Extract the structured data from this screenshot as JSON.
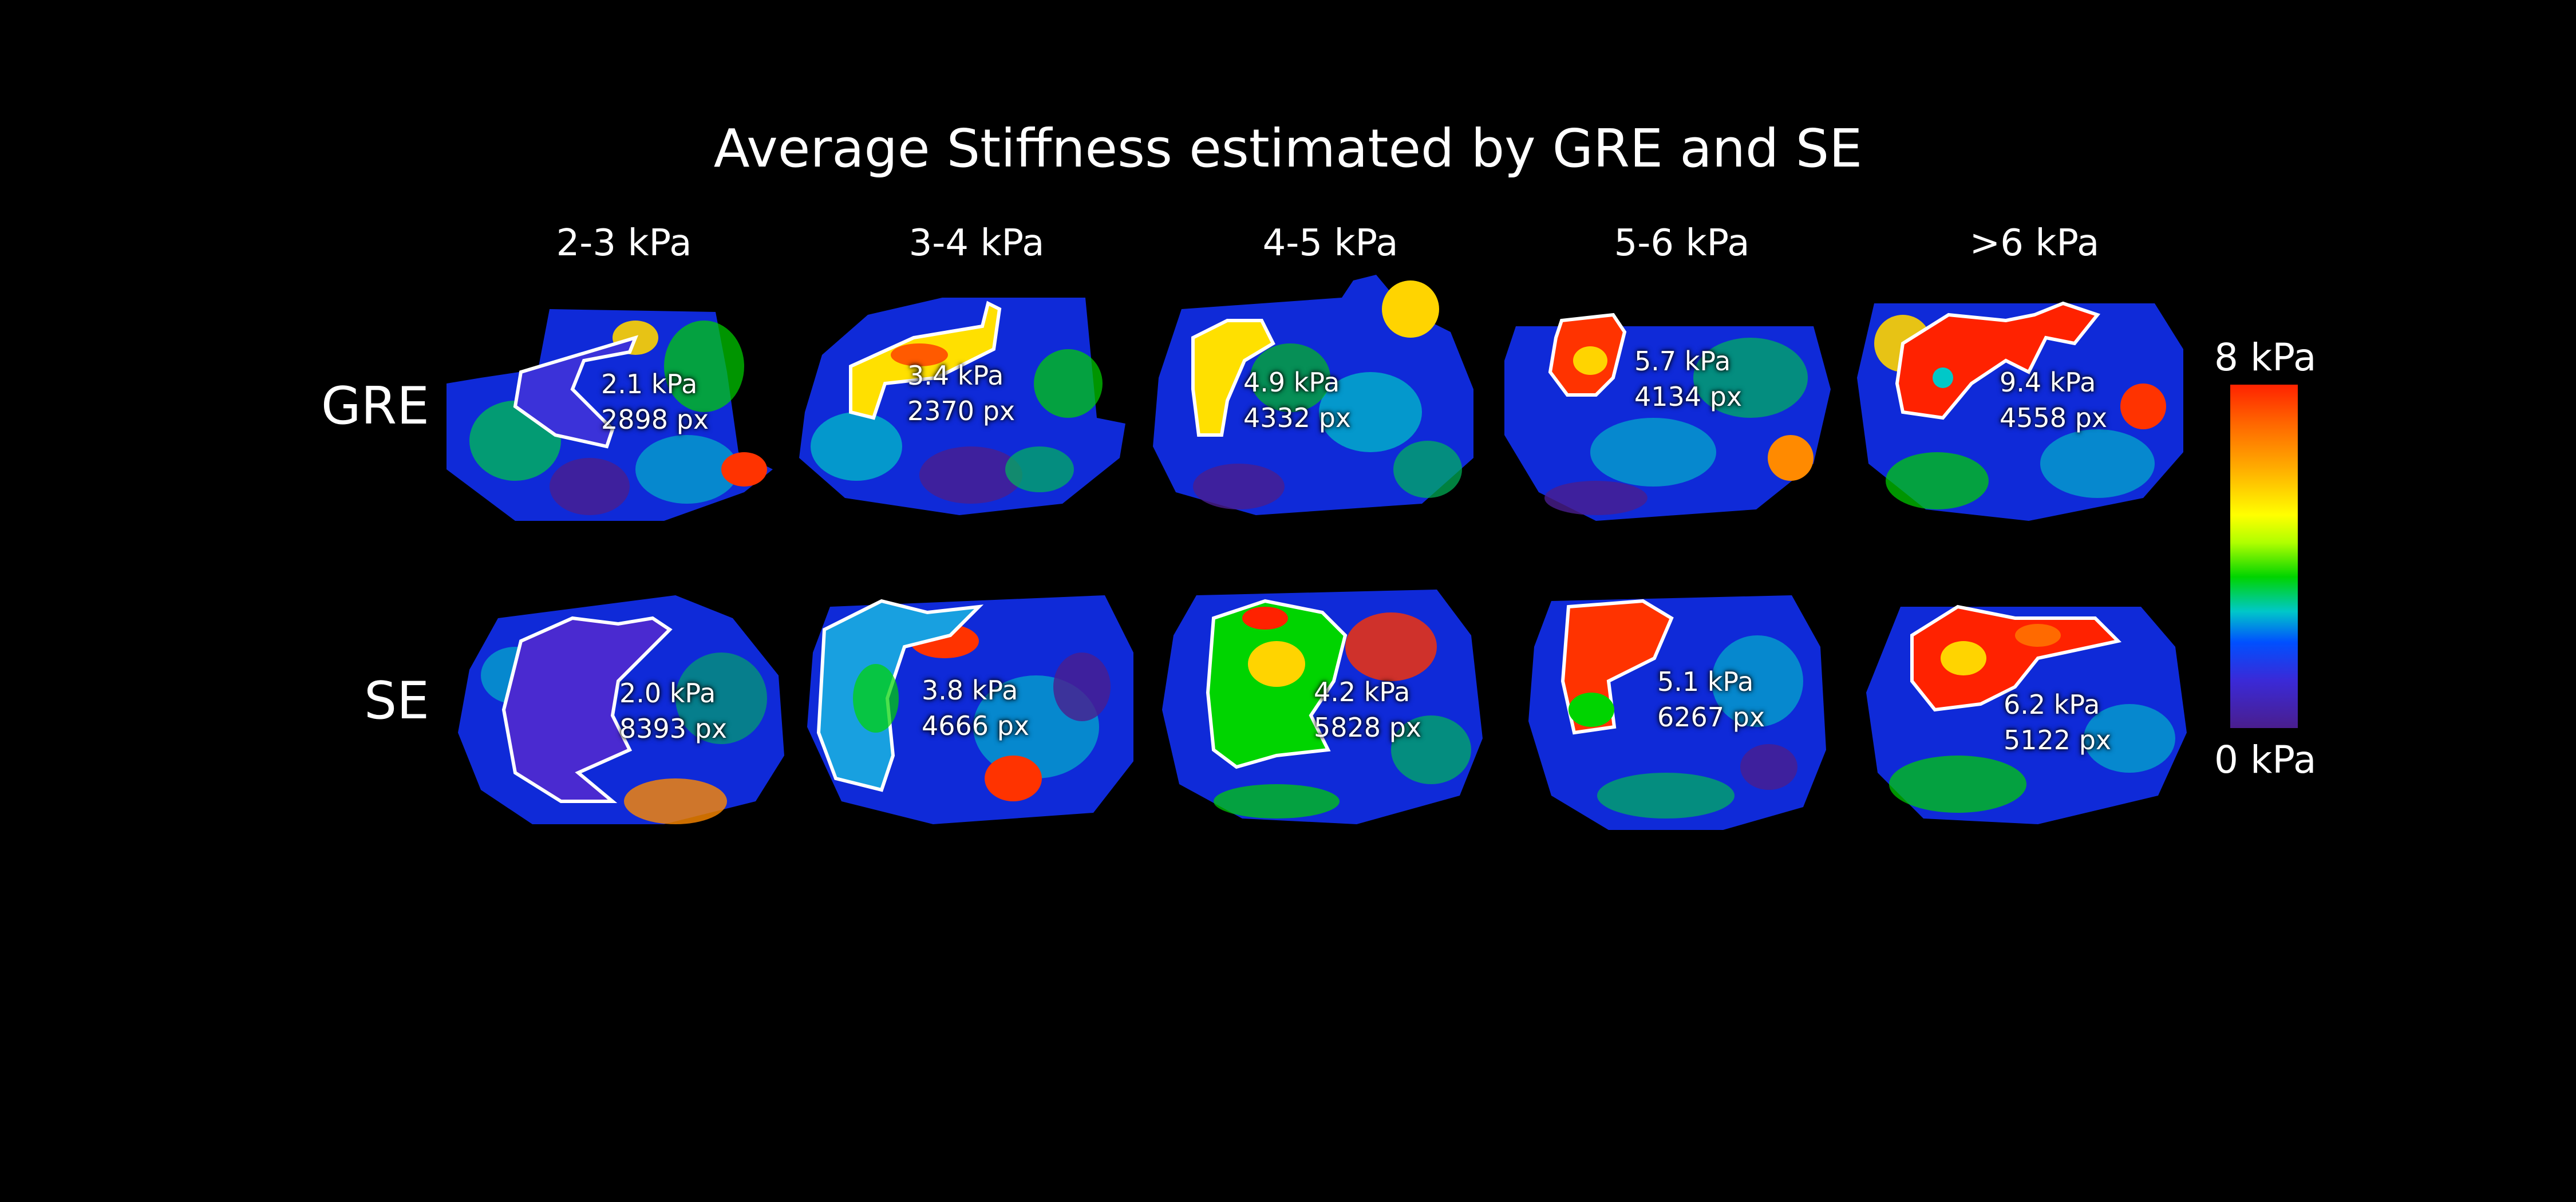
{
  "title": "Average Stiffness estimated by GRE and SE",
  "columns": [
    "2-3 kPa",
    "3-4 kPa",
    "4-5 kPa",
    "5-6 kPa",
    ">6 kPa"
  ],
  "rows": [
    "GRE",
    "SE"
  ],
  "panels": [
    [
      {
        "stiffness": "2.1 kPa",
        "pixels": "2898 px"
      },
      {
        "stiffness": "3.4 kPa",
        "pixels": "2370 px"
      },
      {
        "stiffness": "4.9 kPa",
        "pixels": "4332 px"
      },
      {
        "stiffness": "5.7 kPa",
        "pixels": "4134 px"
      },
      {
        "stiffness": "9.4 kPa",
        "pixels": "4558 px"
      }
    ],
    [
      {
        "stiffness": "2.0 kPa",
        "pixels": "8393 px"
      },
      {
        "stiffness": "3.8 kPa",
        "pixels": "4666 px"
      },
      {
        "stiffness": "4.2 kPa",
        "pixels": "5828 px"
      },
      {
        "stiffness": "5.1 kPa",
        "pixels": "6267 px"
      },
      {
        "stiffness": "6.2 kPa",
        "pixels": "5122 px"
      }
    ]
  ],
  "colorbar": {
    "max_label": "8 kPa",
    "min_label": "0 kPa"
  }
}
